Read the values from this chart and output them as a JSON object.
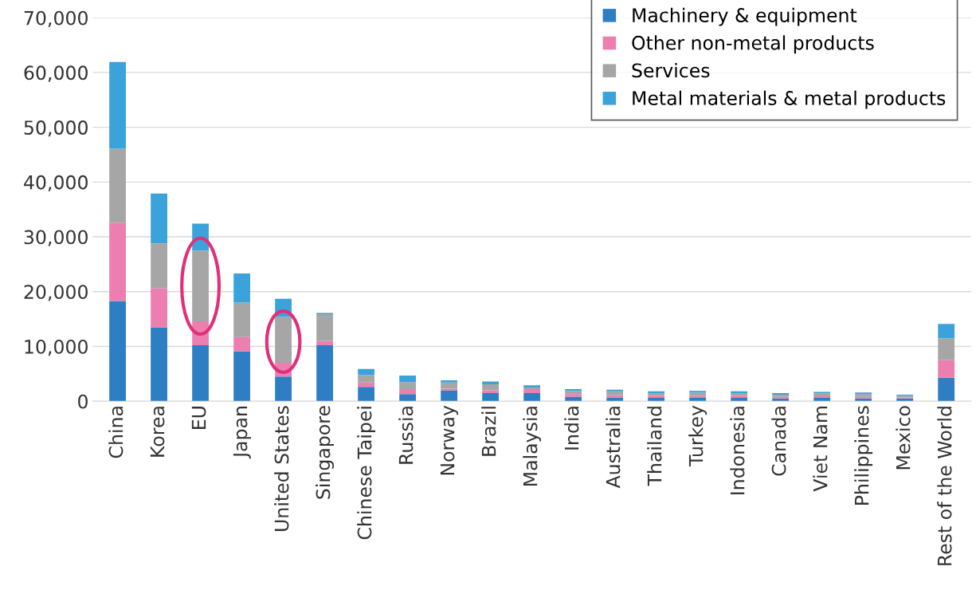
{
  "chart_data": {
    "type": "bar",
    "stacked": true,
    "categories": [
      "China",
      "Korea",
      "EU",
      "Japan",
      "United States",
      "Singapore",
      "Chinese Taipei",
      "Russia",
      "Norway",
      "Brazil",
      "Malaysia",
      "India",
      "Australia",
      "Thailand",
      "Turkey",
      "Indonesia",
      "Canada",
      "Viet Nam",
      "Philippines",
      "Mexico",
      "Rest of the World"
    ],
    "series": [
      {
        "name": "Machinery & equipment",
        "color": "#2e7ec4",
        "values": [
          18300,
          13500,
          10200,
          9100,
          4500,
          10200,
          2600,
          1300,
          2000,
          1500,
          1500,
          800,
          700,
          600,
          600,
          600,
          500,
          600,
          500,
          500,
          4300
        ]
      },
      {
        "name": "Other non-metal products",
        "color": "#ec7fb0",
        "values": [
          14300,
          7100,
          4400,
          2600,
          2500,
          800,
          800,
          900,
          300,
          500,
          700,
          500,
          400,
          400,
          400,
          400,
          300,
          300,
          300,
          200,
          3200
        ]
      },
      {
        "name": "Services",
        "color": "#a6a6a6",
        "values": [
          13500,
          8200,
          12900,
          6300,
          8400,
          4900,
          1400,
          1300,
          1100,
          1100,
          300,
          600,
          700,
          500,
          600,
          500,
          400,
          500,
          500,
          300,
          4000
        ]
      },
      {
        "name": "Metal materials & metal products",
        "color": "#3ba3d9",
        "values": [
          15800,
          9100,
          4900,
          5300,
          3300,
          200,
          1100,
          1200,
          400,
          500,
          400,
          300,
          300,
          300,
          300,
          300,
          300,
          300,
          300,
          200,
          2600
        ]
      }
    ],
    "ylim": [
      0,
      70000
    ],
    "yticks": [
      0,
      {
        "value": 10000,
        "label": "10,000"
      },
      {
        "value": 20000,
        "label": "20,000"
      },
      {
        "value": 30000,
        "label": "30,000"
      },
      {
        "value": 40000,
        "label": "40,000"
      },
      {
        "value": 50000,
        "label": "50,000"
      },
      {
        "value": 60000,
        "label": "60,000"
      },
      {
        "value": 70000,
        "label": "70,000"
      }
    ],
    "grid": "y",
    "legend": "top right"
  }
}
